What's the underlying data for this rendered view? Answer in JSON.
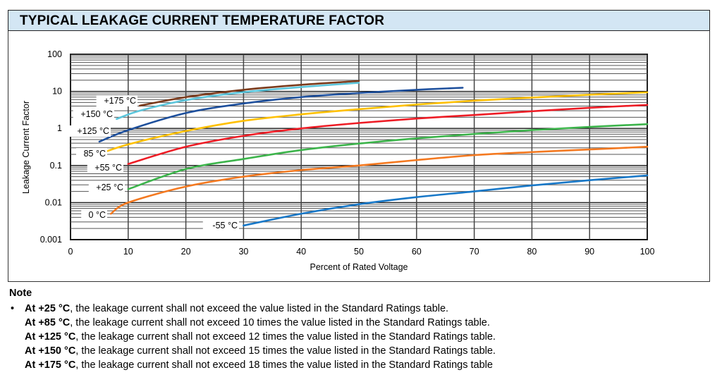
{
  "header": {
    "title": "TYPICAL LEAKAGE CURRENT TEMPERATURE FACTOR"
  },
  "chart_data": {
    "type": "line",
    "title": "TYPICAL LEAKAGE CURRENT TEMPERATURE FACTOR",
    "xlabel": "Percent of Rated Voltage",
    "ylabel": "Leakage Current Factor",
    "xlim": [
      0,
      100
    ],
    "ylim": [
      0.001,
      100
    ],
    "yscale": "log",
    "grid": true,
    "xticks": [
      "0",
      "10",
      "20",
      "30",
      "40",
      "50",
      "60",
      "70",
      "80",
      "90",
      "100"
    ],
    "yticks": [
      "100",
      "10",
      "1",
      "0.1",
      "0.01",
      "0.001"
    ],
    "series": [
      {
        "name": "+175 °C",
        "color": "#7b3b1c",
        "x": [
          12,
          20,
          30,
          40,
          50
        ],
        "y": [
          4.1,
          7,
          11,
          15,
          19
        ]
      },
      {
        "name": "+150 °C",
        "color": "#5cc6dc",
        "x": [
          8,
          12,
          20,
          30,
          40,
          50
        ],
        "y": [
          1.8,
          3,
          5.8,
          9.5,
          13,
          17
        ]
      },
      {
        "name": "+125 °C",
        "color": "#1d4f9c",
        "x": [
          5,
          10,
          20,
          30,
          40,
          50,
          60,
          68
        ],
        "y": [
          0.44,
          0.9,
          2.6,
          4.7,
          7,
          9,
          11,
          12.5
        ]
      },
      {
        "name": "85 °C",
        "color": "#ffc000",
        "x": [
          4,
          10,
          20,
          30,
          40,
          50,
          60,
          70,
          80,
          90,
          100
        ],
        "y": [
          0.18,
          0.37,
          0.85,
          1.6,
          2.4,
          3.3,
          4.4,
          5.6,
          6.8,
          8.1,
          9.4
        ]
      },
      {
        "name": "+55 °C",
        "color": "#ee1c25",
        "x": [
          10,
          20,
          30,
          40,
          50,
          60,
          70,
          80,
          90,
          100
        ],
        "y": [
          0.11,
          0.32,
          0.63,
          1,
          1.4,
          1.85,
          2.3,
          2.9,
          3.6,
          4.3
        ]
      },
      {
        "name": "+25 °C",
        "color": "#3cb44b",
        "x": [
          10,
          20,
          30,
          40,
          50,
          60,
          70,
          80,
          90,
          100
        ],
        "y": [
          0.023,
          0.08,
          0.15,
          0.26,
          0.39,
          0.54,
          0.71,
          0.9,
          1.1,
          1.3
        ]
      },
      {
        "name": "0 °C",
        "color": "#f47920",
        "x": [
          7,
          10,
          20,
          30,
          40,
          50,
          60,
          70,
          80,
          90,
          100
        ],
        "y": [
          0.005,
          0.01,
          0.027,
          0.05,
          0.075,
          0.1,
          0.14,
          0.19,
          0.23,
          0.27,
          0.32
        ]
      },
      {
        "name": "-55 °C",
        "color": "#1878c8",
        "x": [
          30,
          40,
          50,
          60,
          70,
          80,
          90,
          100
        ],
        "y": [
          0.0024,
          0.005,
          0.009,
          0.014,
          0.02,
          0.029,
          0.04,
          0.054
        ]
      }
    ]
  },
  "note": {
    "title": "Note",
    "bullet": "•",
    "lines": [
      {
        "bold": "At +25 °C",
        "text": ", the leakage current shall not exceed the value listed in the Standard Ratings table."
      },
      {
        "bold": "At +85 °C",
        "text": ", the leakage current shall not exceed 10 times the value listed in the Standard Ratings table."
      },
      {
        "bold": "At +125 °C",
        "text": ", the leakage current shall not exceed 12 times the value listed in the Standard Ratings table."
      },
      {
        "bold": "At +150 °C",
        "text": ", the leakage current shall not exceed 15 times the value listed in the Standard Ratings table."
      },
      {
        "bold": "At +175 °C",
        "text": ", the leakage current shall not exceed 18 times the value listed in the Standard Ratings table"
      }
    ]
  }
}
